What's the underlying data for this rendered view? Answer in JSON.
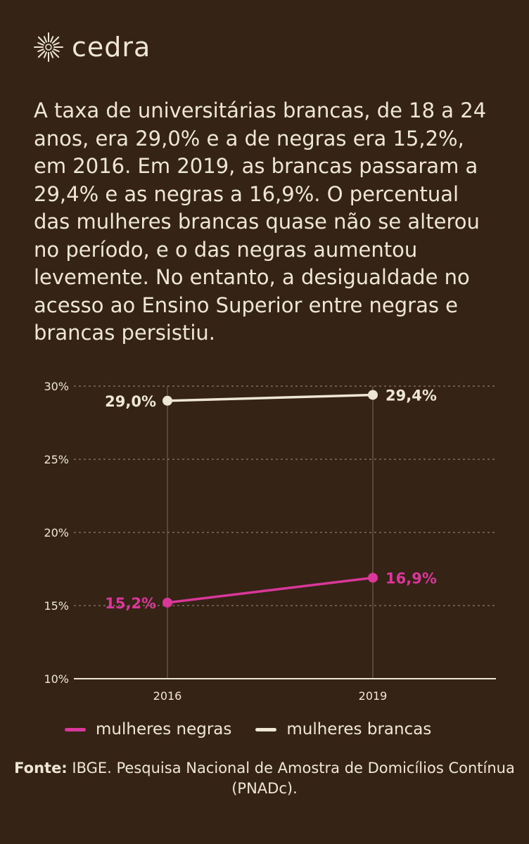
{
  "brand": {
    "name": "cedra",
    "logo_icon": "sun-burst-icon"
  },
  "intro": "A taxa de universitárias brancas, de 18 a 24 anos, era 29,0% e a de negras era 15,2%, em 2016. Em 2019, as brancas passaram a 29,4% e as negras a 16,9%. O percentual das mulheres brancas quase não se alterou no período, e o das negras aumentou levemente. No entanto, a desigualdade no acesso ao Ensino Superior entre negras e brancas persistiu.",
  "chart_data": {
    "type": "line",
    "x": [
      "2016",
      "2019"
    ],
    "ylim": [
      10,
      30
    ],
    "yticks": [
      "10%",
      "15%",
      "20%",
      "25%",
      "30%"
    ],
    "grid": true,
    "series": [
      {
        "name": "mulheres brancas",
        "values": [
          29.0,
          29.4
        ],
        "labels": [
          "29,0%",
          "29,4%"
        ],
        "color": "#efe7d6"
      },
      {
        "name": "mulheres negras",
        "values": [
          15.2,
          16.9
        ],
        "labels": [
          "15,2%",
          "16,9%"
        ],
        "color": "#d9379a"
      }
    ],
    "legend_position": "bottom"
  },
  "legend": {
    "negras": {
      "label": "mulheres negras",
      "color": "#d9379a"
    },
    "brancas": {
      "label": "mulheres brancas",
      "color": "#efe7d6"
    }
  },
  "source": {
    "prefix": "Fonte:",
    "text": " IBGE. Pesquisa Nacional de Amostra de Domicílios Contínua (PNADc)."
  }
}
